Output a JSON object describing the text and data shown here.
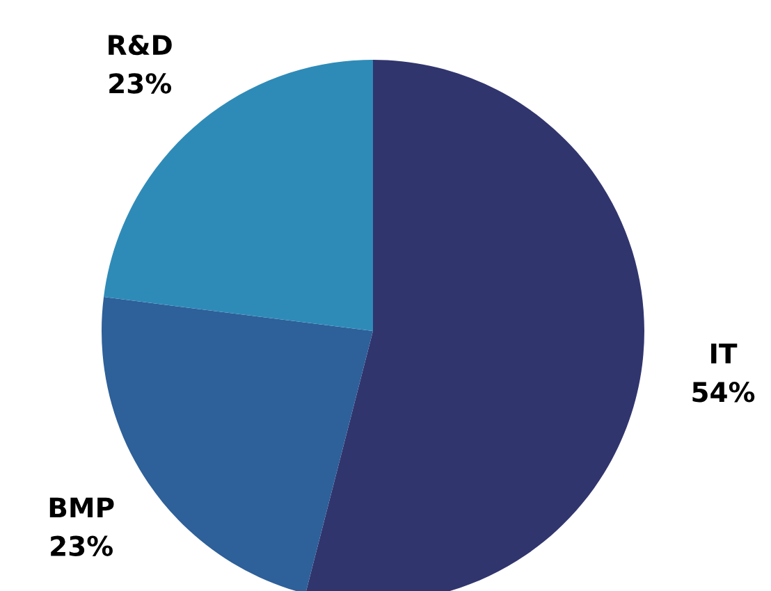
{
  "chart_data": {
    "type": "pie",
    "categories": [
      "IT",
      "BMP",
      "R&D"
    ],
    "values": [
      54,
      23,
      23
    ],
    "value_labels": [
      "54%",
      "23%",
      "23%"
    ],
    "colors": [
      "#31356e",
      "#2e6099",
      "#2e8bb8"
    ],
    "legend": false
  }
}
